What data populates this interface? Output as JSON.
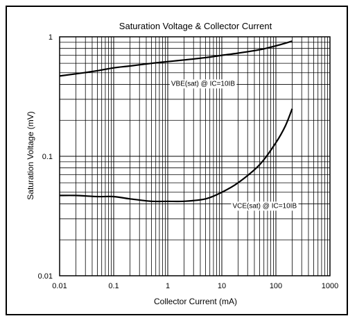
{
  "chart_data": {
    "type": "line",
    "title": "Saturation Voltage & Collector Current",
    "xlabel": "Collector Current (mA)",
    "ylabel": "Saturation Voltage (mV)",
    "xscale": "log",
    "yscale": "log",
    "xlim": [
      0.01,
      1000
    ],
    "ylim": [
      0.01,
      1
    ],
    "x_ticks": [
      "0.01",
      "0.1",
      "1",
      "10",
      "100",
      "1000"
    ],
    "y_ticks": [
      "0.01",
      "0.1",
      "1"
    ],
    "grid": true,
    "series": [
      {
        "name": "VBE(sat) @ IC=10IB",
        "x": [
          0.01,
          0.02,
          0.05,
          0.1,
          0.2,
          0.5,
          1,
          2,
          5,
          10,
          20,
          50,
          100,
          200
        ],
        "y": [
          0.47,
          0.49,
          0.52,
          0.55,
          0.57,
          0.6,
          0.62,
          0.64,
          0.67,
          0.7,
          0.73,
          0.78,
          0.84,
          0.92
        ]
      },
      {
        "name": "VCE(sat) @ IC=10IB",
        "x": [
          0.01,
          0.02,
          0.05,
          0.1,
          0.2,
          0.5,
          1,
          2,
          5,
          10,
          20,
          50,
          100,
          150,
          200
        ],
        "y": [
          0.047,
          0.047,
          0.046,
          0.046,
          0.044,
          0.042,
          0.042,
          0.042,
          0.044,
          0.05,
          0.06,
          0.085,
          0.13,
          0.18,
          0.25
        ]
      }
    ],
    "annotations": [
      {
        "text": "VBE(sat) @ IC=10IB",
        "series": 0
      },
      {
        "text": "VCE(sat) @ IC=10IB",
        "series": 1
      }
    ]
  }
}
